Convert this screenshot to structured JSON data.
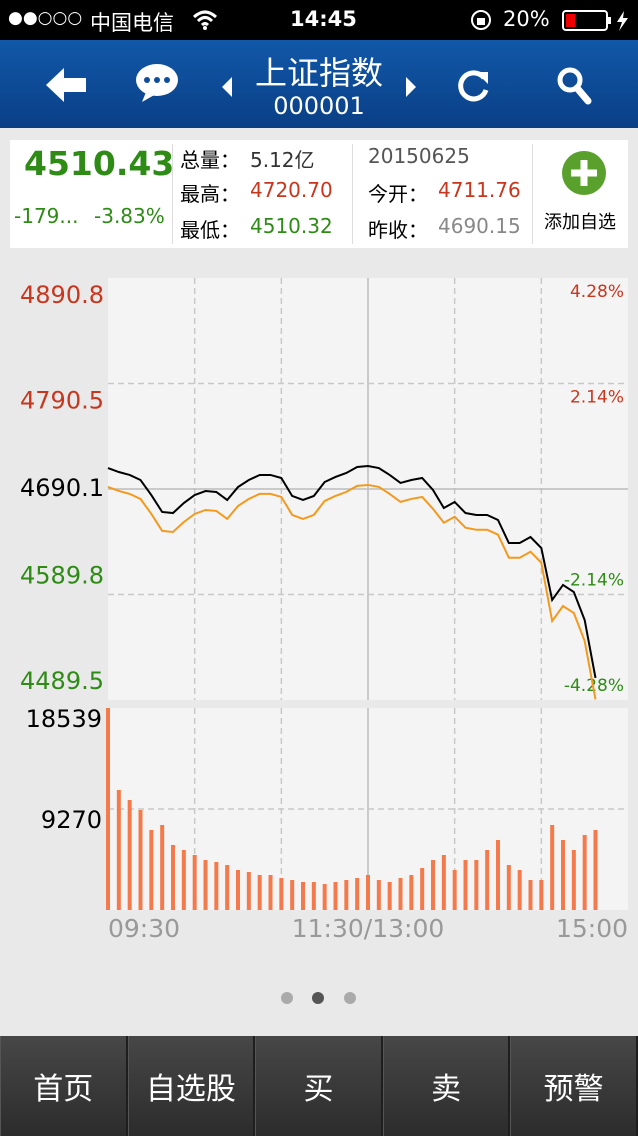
{
  "status_bar": {
    "signal": "●●○○○",
    "carrier": "中国电信",
    "time": "14:45",
    "battery": "20%"
  },
  "nav": {
    "title": "上证指数",
    "code": "000001"
  },
  "quote": {
    "price": "4510.43",
    "change": "-179...",
    "change_percent": "-3.83%",
    "volume": {
      "label": "总量：",
      "value": "5.12亿"
    },
    "high": {
      "label": "最高：",
      "value": "4720.70"
    },
    "low": {
      "label": "最低：",
      "value": "4510.32"
    },
    "date": "20150625",
    "open": {
      "label": "今开：",
      "value": "4711.76"
    },
    "prev_close": {
      "label": "昨收：",
      "value": "4690.15"
    },
    "add": "添加自选"
  },
  "chart_data": [
    {
      "type": "line",
      "x": [
        0,
        5,
        10,
        15,
        20,
        25,
        30,
        35,
        40,
        45,
        50,
        55,
        60,
        65,
        70,
        75,
        80,
        85,
        90,
        95,
        100,
        105,
        110,
        115,
        120,
        125,
        130,
        135,
        140,
        145,
        150,
        155,
        160,
        165,
        170,
        175,
        180,
        185,
        190,
        195,
        200,
        205,
        210,
        215,
        220,
        225
      ],
      "series": [
        {
          "color": "#000000",
          "values": [
            4710.1,
            4706.3,
            4703.5,
            4698.7,
            4684.4,
            4668.3,
            4667.3,
            4676.8,
            4684.4,
            4688.2,
            4687.3,
            4679.7,
            4692.0,
            4698.7,
            4703.5,
            4703.5,
            4700.6,
            4683.5,
            4679.7,
            4683.5,
            4696.8,
            4701.6,
            4705.4,
            4711.1,
            4712.0,
            4710.1,
            4703.5,
            4695.9,
            4698.7,
            4700.6,
            4689.2,
            4672.1,
            4677.8,
            4667.3,
            4665.4,
            4665.4,
            4660.7,
            4638.8,
            4638.8,
            4644.5,
            4634.0,
            4584.6,
            4598.9,
            4592.2,
            4565.6,
            4510.43
          ]
        },
        {
          "color": "#f39a1e",
          "values": [
            4692.1,
            4688.3,
            4685.5,
            4680.7,
            4666.4,
            4650.3,
            4649.3,
            4658.8,
            4666.4,
            4670.2,
            4669.3,
            4661.7,
            4674.0,
            4680.7,
            4685.5,
            4685.5,
            4682.6,
            4665.5,
            4661.7,
            4665.5,
            4678.8,
            4683.6,
            4687.4,
            4693.1,
            4694.0,
            4692.1,
            4685.5,
            4677.9,
            4680.7,
            4682.6,
            4671.2,
            4658.1,
            4663.8,
            4653.3,
            4651.4,
            4651.4,
            4646.7,
            4624.8,
            4624.8,
            4630.5,
            4620.0,
            4564.6,
            4578.9,
            4572.2,
            4545.6,
            4490.0
          ]
        }
      ],
      "xlim": [
        0,
        240
      ],
      "ylim": [
        4489.5,
        4890.8
      ],
      "yticks": [
        4489.5,
        4589.8,
        4690.1,
        4790.5,
        4890.8
      ],
      "y2lim": [
        -4.28,
        4.28
      ],
      "y2ticks": [
        {
          "value": 4.28,
          "label": "4.28%"
        },
        {
          "value": 2.14,
          "label": "2.14%"
        },
        {
          "value": -2.14,
          "label": "-2.14%"
        },
        {
          "value": -4.28,
          "label": "-4.28%"
        }
      ],
      "grid": true
    },
    {
      "type": "bar",
      "x": [
        0,
        5,
        10,
        15,
        20,
        25,
        30,
        35,
        40,
        45,
        50,
        55,
        60,
        65,
        70,
        75,
        80,
        85,
        90,
        95,
        100,
        105,
        110,
        115,
        120,
        125,
        130,
        135,
        140,
        145,
        150,
        155,
        160,
        165,
        170,
        175,
        180,
        185,
        190,
        195,
        200,
        205,
        210,
        215,
        220,
        225
      ],
      "values": [
        18539,
        11016,
        10098,
        9180,
        7344,
        7803,
        5967,
        5508,
        5049,
        4590,
        4406,
        4131,
        3672,
        3488,
        3213,
        3213,
        2938,
        2754,
        2570,
        2570,
        2387,
        2570,
        2754,
        2938,
        3213,
        2754,
        2570,
        2938,
        3213,
        3856,
        4590,
        5049,
        3672,
        4590,
        4590,
        5508,
        6426,
        4131,
        3672,
        2754,
        2754,
        7803,
        6426,
        5508,
        6885,
        7344
      ],
      "color": "#f47a4c",
      "xlim": [
        0,
        240
      ],
      "xticks": [
        {
          "value": 0,
          "label": "09:30"
        },
        {
          "value": 120,
          "label": "11:30/13:00"
        },
        {
          "value": 240,
          "label": "15:00"
        }
      ],
      "ylim": [
        0,
        18539
      ],
      "yticks": [
        18539,
        9270
      ],
      "grid": true
    }
  ],
  "tabs": [
    "首页",
    "自选股",
    "买",
    "卖",
    "预警"
  ]
}
